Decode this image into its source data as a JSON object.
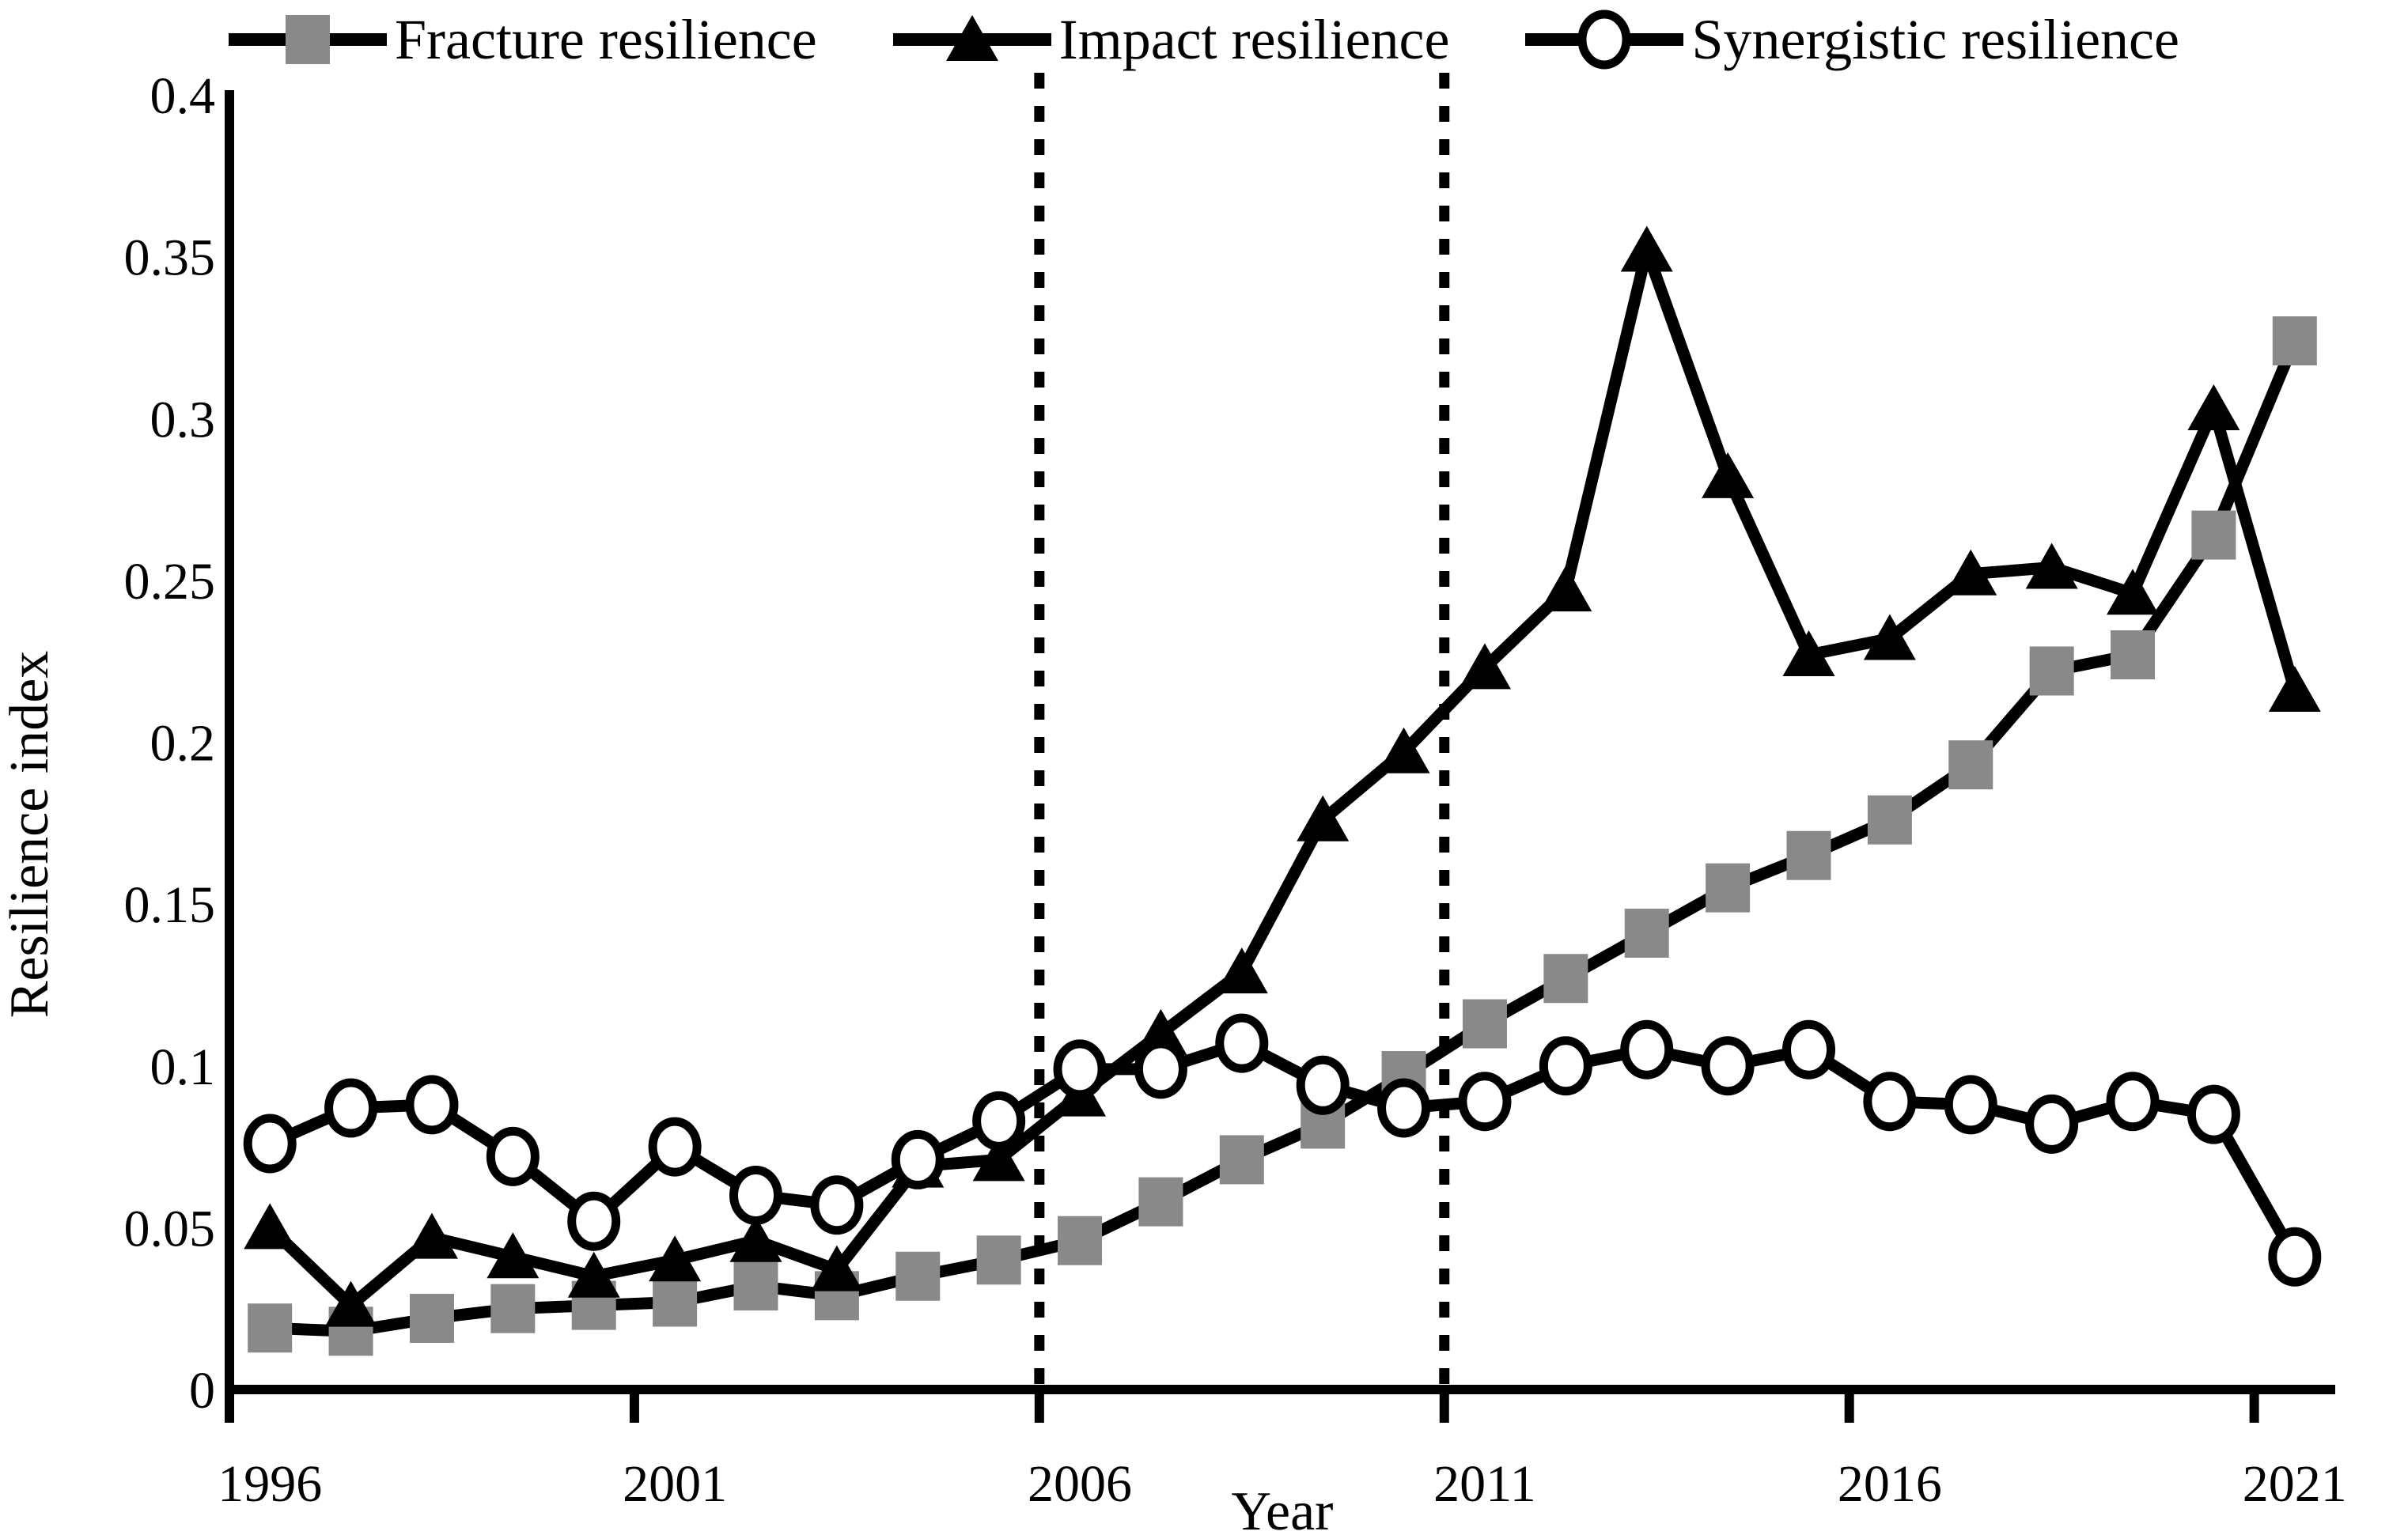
{
  "colors": {
    "foreground": "#000000",
    "background": "#ffffff",
    "fracture_marker": "#898989",
    "impact_marker": "#000000",
    "synergistic_marker_fill": "#ffffff",
    "synergistic_marker_stroke": "#000000"
  },
  "legend": {
    "items": [
      {
        "label": "Fracture resilience",
        "marker": "square",
        "color": "#898989"
      },
      {
        "label": "Impact resilience",
        "marker": "triangle",
        "color": "#000000"
      },
      {
        "label": "Synergistic resilience",
        "marker": "circle",
        "color": "#ffffff",
        "stroke": "#000000"
      }
    ]
  },
  "chart_data": {
    "type": "line",
    "title": "",
    "xlabel": "Year",
    "ylabel": "Resilience index",
    "ylim": [
      0,
      0.4
    ],
    "grid": false,
    "legend_position": "top",
    "x": [
      1996,
      1997,
      1998,
      1999,
      2000,
      2001,
      2002,
      2003,
      2004,
      2005,
      2006,
      2007,
      2008,
      2009,
      2010,
      2011,
      2012,
      2013,
      2014,
      2015,
      2016,
      2017,
      2018,
      2019,
      2020,
      2021
    ],
    "xtick_labels": [
      "1996",
      "2001",
      "2006",
      "2011",
      "2016",
      "2021"
    ],
    "ytick_values": [
      0,
      0.05,
      0.1,
      0.15,
      0.2,
      0.25,
      0.3,
      0.35,
      0.4
    ],
    "ytick_labels": [
      "0",
      "0.05",
      "0.1",
      "0.15",
      "0.2",
      "0.25",
      "0.3",
      "0.35",
      "0.4"
    ],
    "vlines": [
      {
        "x_boundary": 2006,
        "style": "dotted"
      },
      {
        "x_boundary": 2011,
        "style": "dotted"
      }
    ],
    "series": [
      {
        "name": "Fracture resilience",
        "marker": "square",
        "values": [
          0.019,
          0.018,
          0.022,
          0.025,
          0.026,
          0.027,
          0.032,
          0.029,
          0.035,
          0.04,
          0.046,
          0.058,
          0.071,
          0.082,
          0.097,
          0.113,
          0.127,
          0.141,
          0.155,
          0.165,
          0.176,
          0.193,
          0.222,
          0.227,
          0.264,
          0.324
        ]
      },
      {
        "name": "Impact resilience",
        "marker": "triangle",
        "values": [
          0.05,
          0.026,
          0.047,
          0.041,
          0.035,
          0.04,
          0.046,
          0.037,
          0.069,
          0.071,
          0.091,
          0.11,
          0.129,
          0.176,
          0.197,
          0.223,
          0.247,
          0.352,
          0.282,
          0.227,
          0.232,
          0.252,
          0.254,
          0.246,
          0.303,
          0.216
        ]
      },
      {
        "name": "Synergistic resilience",
        "marker": "circle",
        "values": [
          0.076,
          0.087,
          0.088,
          0.072,
          0.052,
          0.075,
          0.06,
          0.057,
          0.071,
          0.083,
          0.099,
          0.099,
          0.107,
          0.094,
          0.087,
          0.089,
          0.1,
          0.105,
          0.1,
          0.105,
          0.089,
          0.088,
          0.082,
          0.089,
          0.085,
          0.041
        ]
      }
    ]
  }
}
